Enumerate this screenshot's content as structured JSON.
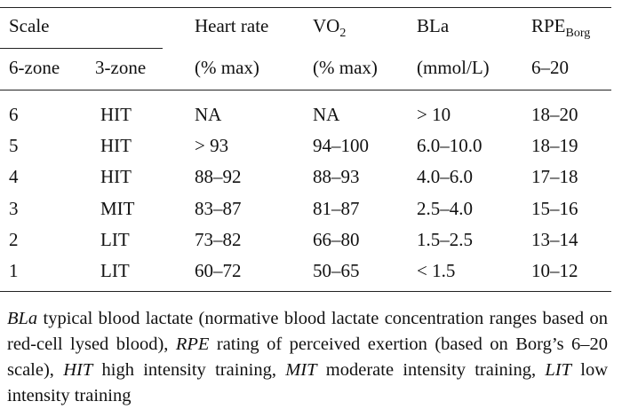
{
  "table": {
    "header_top": {
      "scale": "Scale",
      "heart_rate": "Heart rate",
      "vo2_base": "VO",
      "vo2_sub": "2",
      "bla": "BLa",
      "rpe_base": "RPE",
      "rpe_sub": "Borg"
    },
    "header_bottom": {
      "six_zone": "6-zone",
      "three_zone": "3-zone",
      "heart_rate_unit": "(% max)",
      "vo2_unit": "(% max)",
      "bla_unit": "(mmol/L)",
      "rpe_range": "6–20"
    },
    "rows": [
      {
        "six_zone": "6",
        "three_zone": "HIT",
        "heart_rate": "NA",
        "vo2": "NA",
        "bla": "> 10",
        "rpe": "18–20"
      },
      {
        "six_zone": "5",
        "three_zone": "HIT",
        "heart_rate": "> 93",
        "vo2": "94–100",
        "bla": "6.0–10.0",
        "rpe": "18–19"
      },
      {
        "six_zone": "4",
        "three_zone": "HIT",
        "heart_rate": "88–92",
        "vo2": "88–93",
        "bla": "4.0–6.0",
        "rpe": "17–18"
      },
      {
        "six_zone": "3",
        "three_zone": "MIT",
        "heart_rate": "83–87",
        "vo2": "81–87",
        "bla": "2.5–4.0",
        "rpe": "15–16"
      },
      {
        "six_zone": "2",
        "three_zone": "LIT",
        "heart_rate": "73–82",
        "vo2": "66–80",
        "bla": "1.5–2.5",
        "rpe": "13–14"
      },
      {
        "six_zone": "1",
        "three_zone": "LIT",
        "heart_rate": "60–72",
        "vo2": "50–65",
        "bla": "< 1.5",
        "rpe": "10–12"
      }
    ]
  },
  "footnote": {
    "bla_abbr": "BLa",
    "bla_def": " typical blood lactate (normative blood lactate concentration ranges based on red-cell lysed blood), ",
    "rpe_abbr": "RPE",
    "rpe_def": " rating of perceived exertion (based on Borg’s 6–20 scale), ",
    "hit_abbr": "HIT",
    "hit_def": " high intensity training, ",
    "mit_abbr": "MIT",
    "mit_def": " moderate intensity training, ",
    "lit_abbr": "LIT",
    "lit_def": " low intensity training"
  }
}
